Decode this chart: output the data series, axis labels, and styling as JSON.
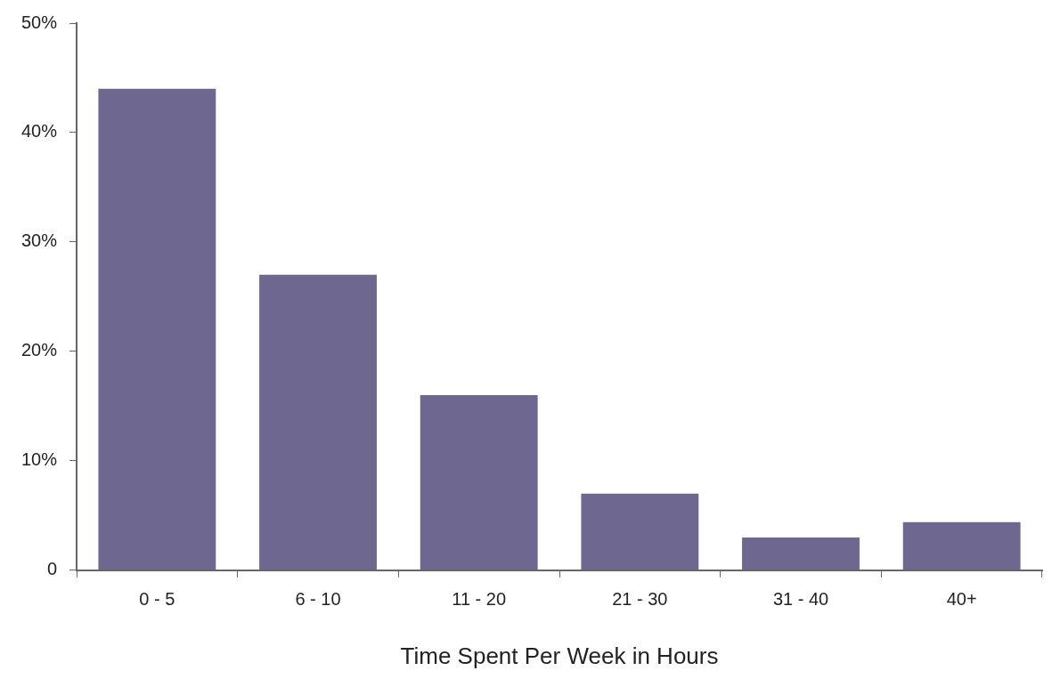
{
  "chart_data": {
    "type": "bar",
    "xlabel": "Time Spent Per Week in Hours",
    "categories": [
      "0 - 5",
      "6 - 10",
      "11 - 20",
      "21 - 30",
      "31 - 40",
      "40+"
    ],
    "values": [
      44,
      27,
      16,
      7,
      3,
      4.4
    ],
    "color": "#6e6890",
    "ylim": [
      0,
      50
    ],
    "yticks": [
      0,
      {
        "value": 10,
        "label": "10%"
      },
      {
        "value": 20,
        "label": "20%"
      },
      {
        "value": 30,
        "label": "30%"
      },
      {
        "value": 40,
        "label": "40%"
      },
      {
        "value": 50,
        "label": "50%"
      }
    ],
    "legend": false
  }
}
